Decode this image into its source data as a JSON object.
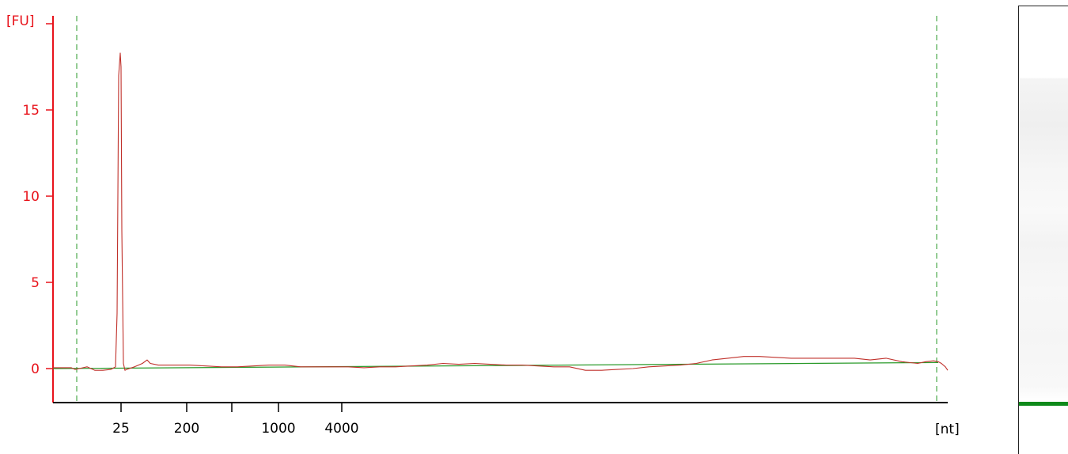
{
  "colors": {
    "trace": "#c0312b",
    "baseline": "#2a9a2a",
    "axis_y": "#e8131b",
    "axis_x": "#000000",
    "window_lines": "#2a9a2a",
    "gel_band": "#0e8a1a"
  },
  "chart_data": {
    "type": "line",
    "title": "",
    "ylabel": "[FU]",
    "xlabel": "[nt]",
    "ylim": [
      -2,
      20
    ],
    "y_ticks": [
      0,
      5,
      10,
      15
    ],
    "x_tick_labels": [
      {
        "label": "25",
        "pos": 153
      },
      {
        "label": "200",
        "pos": 236
      },
      {
        "label": "",
        "pos": 293
      },
      {
        "label": "1000",
        "pos": 352
      },
      {
        "label": "4000",
        "pos": 432
      }
    ],
    "x_scale": "migration",
    "x_domain": [
      67,
      1198
    ],
    "window_lines": [
      97,
      1184
    ],
    "series": [
      {
        "x": [
          67,
          90,
          95,
          105,
          110,
          120,
          130,
          140,
          146,
          148,
          150,
          152,
          153,
          154,
          156,
          158,
          160,
          170,
          180,
          186,
          190,
          200,
          220,
          240,
          260,
          280,
          300,
          320,
          340,
          360,
          380,
          400,
          420,
          440,
          460,
          480,
          500,
          520,
          540,
          560,
          580,
          600,
          620,
          640,
          660,
          680,
          700,
          720,
          740,
          760,
          780,
          800,
          820,
          840,
          860,
          880,
          900,
          920,
          940,
          960,
          980,
          1000,
          1020,
          1040,
          1060,
          1080,
          1100,
          1120,
          1140,
          1160,
          1170,
          1180,
          1186,
          1190,
          1195,
          1198
        ],
        "values": [
          0.05,
          0.05,
          -0.05,
          0.05,
          0.1,
          -0.1,
          -0.1,
          -0.05,
          0.1,
          3.2,
          17.0,
          18.3,
          17.5,
          8.0,
          0.3,
          -0.1,
          -0.05,
          0.1,
          0.3,
          0.5,
          0.3,
          0.2,
          0.2,
          0.2,
          0.15,
          0.1,
          0.1,
          0.15,
          0.2,
          0.2,
          0.1,
          0.1,
          0.1,
          0.1,
          0.05,
          0.1,
          0.1,
          0.15,
          0.2,
          0.3,
          0.25,
          0.3,
          0.25,
          0.2,
          0.2,
          0.15,
          0.1,
          0.1,
          -0.1,
          -0.1,
          -0.05,
          0.0,
          0.1,
          0.15,
          0.2,
          0.3,
          0.5,
          0.6,
          0.7,
          0.7,
          0.65,
          0.6,
          0.6,
          0.6,
          0.6,
          0.6,
          0.5,
          0.6,
          0.4,
          0.3,
          0.4,
          0.45,
          0.4,
          0.3,
          0.1,
          -0.1
        ]
      },
      {
        "x": [
          67,
          1186
        ],
        "values": [
          0.0,
          0.35
        ]
      }
    ],
    "grid": false,
    "legend": "none"
  }
}
